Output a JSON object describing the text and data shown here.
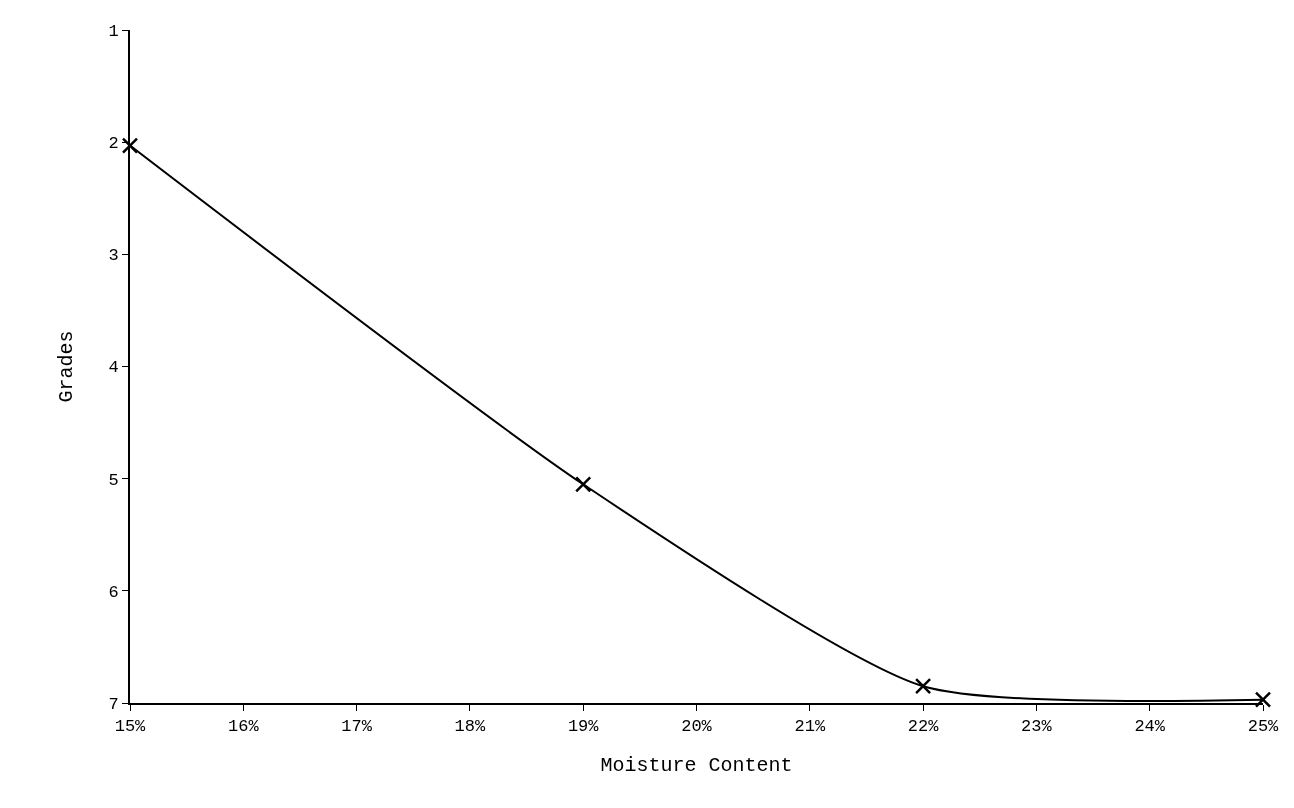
{
  "chart_data": {
    "type": "line",
    "xlabel": "Moisture Content",
    "ylabel": "Grades",
    "x": [
      15,
      19,
      22,
      25
    ],
    "values": [
      2.03,
      5.05,
      6.85,
      6.97
    ],
    "color": "#000000",
    "marker": "cross",
    "line_style": "solid",
    "legend": false,
    "xlim": [
      15,
      25
    ],
    "xticks": [
      {
        "value": 15,
        "label": "15%"
      },
      {
        "value": 16,
        "label": "16%"
      },
      {
        "value": 17,
        "label": "17%"
      },
      {
        "value": 18,
        "label": "18%"
      },
      {
        "value": 19,
        "label": "19%"
      },
      {
        "value": 20,
        "label": "20%"
      },
      {
        "value": 21,
        "label": "21%"
      },
      {
        "value": 22,
        "label": "22%"
      },
      {
        "value": 23,
        "label": "23%"
      },
      {
        "value": 24,
        "label": "24%"
      },
      {
        "value": 25,
        "label": "25%"
      }
    ],
    "ylim": [
      7,
      1
    ],
    "yticks": [
      1,
      2,
      3,
      4,
      5,
      6,
      7
    ]
  }
}
